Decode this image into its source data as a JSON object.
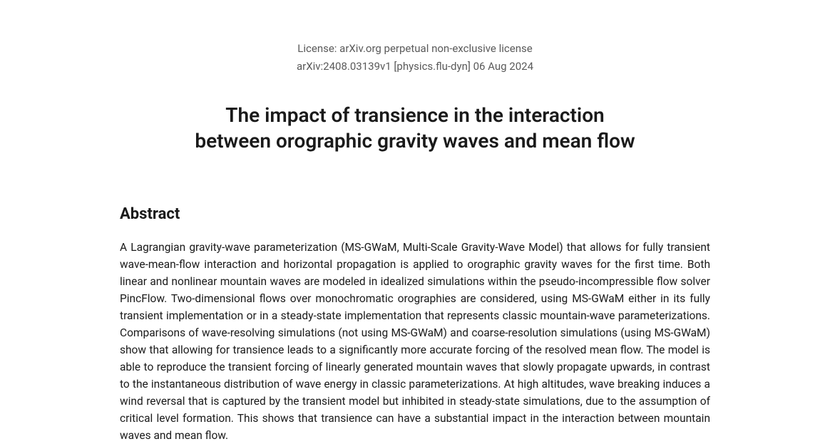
{
  "license": {
    "line1": "License: arXiv.org perpetual non-exclusive license",
    "line2": "arXiv:2408.03139v1 [physics.flu-dyn] 06 Aug 2024"
  },
  "title": {
    "line1": "The impact of transience in the interaction",
    "line2": "between orographic gravity waves and mean flow"
  },
  "abstract": {
    "heading": "Abstract",
    "body": "A Lagrangian gravity-wave parameterization (MS-GWaM, Multi-Scale Gravity-Wave Model) that allows for fully transient wave-mean-flow interaction and horizontal propagation is applied to orographic gravity waves for the first time. Both linear and nonlinear mountain waves are modeled in idealized simulations within the pseudo-incompressible flow solver PincFlow. Two-dimensional flows over monochromatic orographies are considered, using MS-GWaM either in its fully transient implementation or in a steady-state implementation that represents classic mountain-wave parameterizations. Comparisons of wave-resolving simulations (not using MS-GWaM) and coarse-resolution simulations (using MS-GWaM) show that allowing for transience leads to a significantly more accurate forcing of the resolved mean flow. The model is able to reproduce the transient forcing of linearly generated mountain waves that slowly propagate upwards, in contrast to the instantaneous distribution of wave energy in classic parameterizations. At high altitudes, wave breaking induces a wind reversal that is captured by the transient model but inhibited in steady-state simulations, due to the assumption of critical level formation. This shows that transience can have a substantial impact in the interaction between mountain waves and mean flow."
  }
}
